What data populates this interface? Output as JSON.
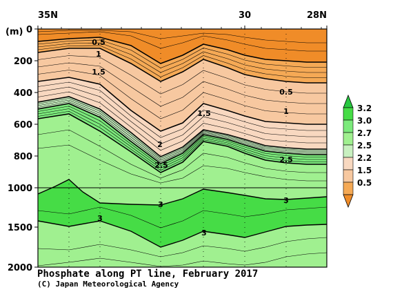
{
  "chart_data": {
    "type": "heatmap",
    "title": "Phosphate along PT line, February 2017",
    "credit": "(C) Japan Meteorological Agency",
    "y_unit": "(m)",
    "x_ticks": [
      "35N",
      "30",
      "28N"
    ],
    "y_ticks": [
      "0",
      "200",
      "400",
      "600",
      "800",
      "1000",
      "1500",
      "2000"
    ],
    "y_axis_note": "depth axis compressed below 1000 m",
    "colors": {
      "orange_dark": "#F08C28",
      "orange_mid": "#F5A955",
      "orange_light": "#F7C8A0",
      "peach": "#F8D8C0",
      "green_pale": "#C8F0C0",
      "green_light": "#A0F090",
      "green_mid": "#7CEA7C",
      "green_strong": "#46DC46",
      "green_dark": "#28C840"
    },
    "legend": {
      "levels": [
        "3.2",
        "3.0",
        "2.7",
        "2.5",
        "2.2",
        "1.5",
        "0.5"
      ]
    },
    "contour_labels": [
      "0.5",
      "1",
      "1.5",
      "2",
      "2.5",
      "0.5",
      "1",
      "1.5",
      "2.5",
      "3",
      "3",
      "3",
      "3"
    ]
  }
}
